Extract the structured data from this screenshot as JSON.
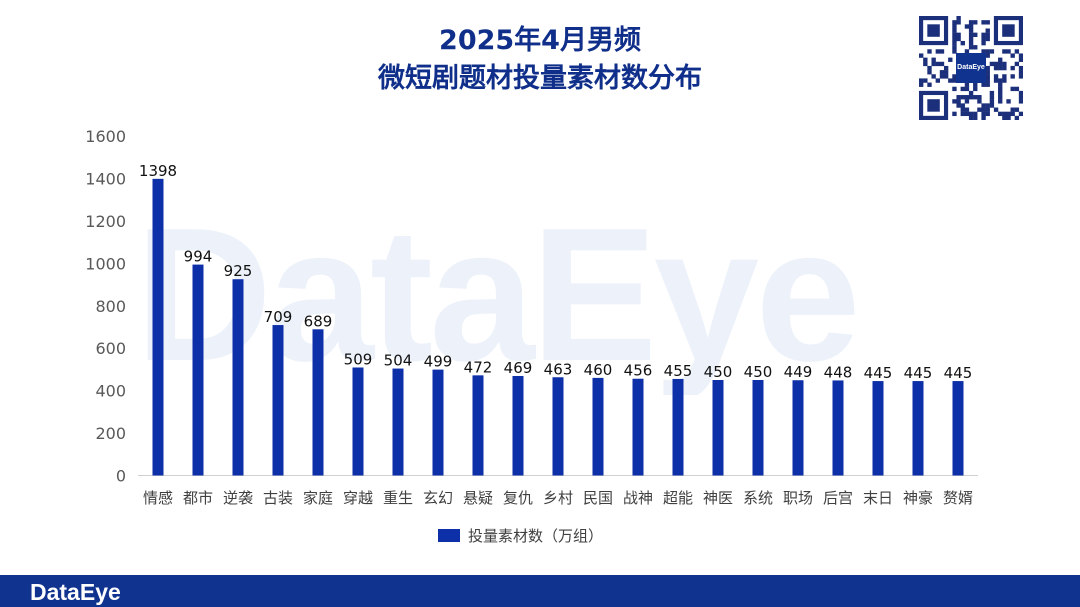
{
  "title_line1": "2025年4月男频",
  "title_line2": "微短剧题材投量素材数分布",
  "watermark": "DataEye",
  "qr_logo": "DataEye",
  "footer_brand": "DataEye",
  "colors": {
    "bar": "#0d2fa8",
    "title": "#0f2f8a",
    "footer": "#10338f"
  },
  "chart_data": {
    "type": "bar",
    "categories": [
      "情感",
      "都市",
      "逆袭",
      "古装",
      "家庭",
      "穿越",
      "重生",
      "玄幻",
      "悬疑",
      "复仇",
      "乡村",
      "民国",
      "战神",
      "超能",
      "神医",
      "系统",
      "职场",
      "后宫",
      "末日",
      "神豪",
      "赘婿"
    ],
    "series": [
      {
        "name": "投量素材数（万组）",
        "values": [
          1398,
          994,
          925,
          709,
          689,
          509,
          504,
          499,
          472,
          469,
          463,
          460,
          456,
          455,
          450,
          450,
          449,
          448,
          445,
          445,
          445
        ]
      }
    ],
    "ylim": [
      0,
      1600
    ],
    "yticks": [
      "0",
      "200",
      "400",
      "600",
      "800",
      "1000",
      "1200",
      "1400",
      "1600"
    ],
    "grid": false,
    "legend": "bottom-center",
    "data_labels": true
  }
}
